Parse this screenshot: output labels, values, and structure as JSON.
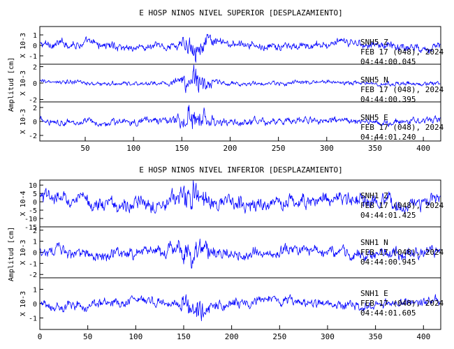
{
  "chart_data": [
    {
      "type": "line",
      "title": "E HOSP NINOS NIVEL SUPERIOR [DESPLAZAMIENTO]",
      "ylabel": "Amplitud [cm]",
      "xlim": [
        3,
        418
      ],
      "xticks": [
        50,
        100,
        150,
        200,
        250,
        300,
        350,
        400
      ],
      "panels": [
        {
          "component": "SNH5   Z",
          "date": "FEB 17 (048), 2024",
          "time": "04:44:00.045",
          "scale": "X 10-3",
          "ylim": [
            -1.8,
            1.8
          ],
          "yticks": [
            1,
            0,
            -1
          ],
          "amplitude": 0.55,
          "burst": [
            165,
            0.9
          ]
        },
        {
          "component": "SNH5   N",
          "date": "FEB 17 (048), 2024",
          "time": "04:44:00.395",
          "scale": "X 10-3",
          "ylim": [
            -2.3,
            2.3
          ],
          "yticks": [
            2,
            0,
            -2
          ],
          "amplitude": 0.4,
          "burst": [
            163,
            2.0
          ]
        },
        {
          "component": "SNH5   E",
          "date": "FEB 17 (048), 2024",
          "time": "04:44:01.240",
          "scale": "X 10-3",
          "ylim": [
            -2.8,
            2.8
          ],
          "yticks": [
            2,
            0,
            -2
          ],
          "amplitude": 0.7,
          "burst": [
            163,
            2.2
          ]
        }
      ]
    },
    {
      "type": "line",
      "title": "E HOSP NINOS NIVEL INFERIOR [DESPLAZAMIENTO]",
      "ylabel": "Amplitud [cm]",
      "xlim": [
        0,
        418
      ],
      "xticks": [
        0,
        50,
        100,
        150,
        200,
        250,
        300,
        350,
        400
      ],
      "panels": [
        {
          "component": "SNH1   Z",
          "date": "FEB 17 (048), 2024",
          "time": "04:44:01.425",
          "scale": "X 10-4",
          "ylim": [
            -15,
            13
          ],
          "yticks": [
            10,
            5,
            0,
            -5,
            -10,
            -15
          ],
          "amplitude": 6,
          "burst": [
            160,
            8
          ]
        },
        {
          "component": "SNH1   N",
          "date": "FEB 17 (048), 2024",
          "time": "04:44:00.945",
          "scale": "X 10-3",
          "ylim": [
            -2.3,
            2.3
          ],
          "yticks": [
            2,
            1,
            0,
            -1,
            -2
          ],
          "amplitude": 0.7,
          "burst": [
            160,
            1.2
          ]
        },
        {
          "component": "SNH1   E",
          "date": "FEB 17 (048), 2024",
          "time": "04:44:01.605",
          "scale": "X 10-3",
          "ylim": [
            -1.8,
            1.8
          ],
          "yticks": [
            1,
            0,
            -1
          ],
          "amplitude": 0.45,
          "burst": [
            162,
            0.9
          ]
        }
      ]
    }
  ],
  "colors": {
    "trace": "#0000ff",
    "axes": "#000000",
    "background": "#ffffff"
  }
}
